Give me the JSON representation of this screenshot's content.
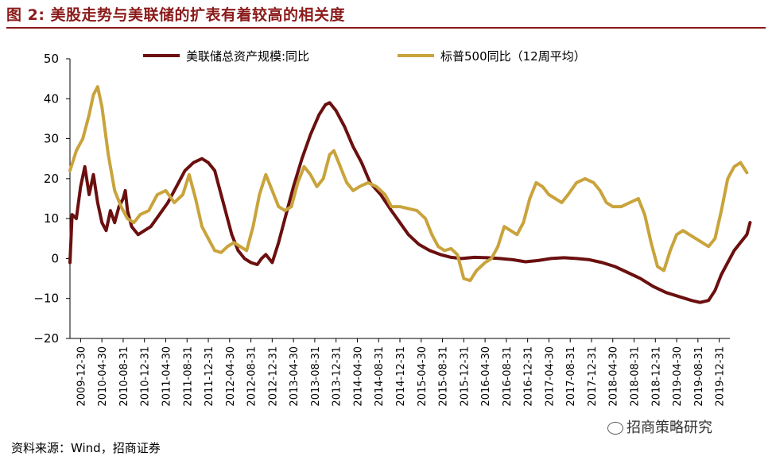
{
  "figure": {
    "title": "图 2:  美股走势与美联储的扩表有着较高的相关度",
    "source": "资料来源：Wind，招商证券",
    "watermark": "招商策略研究"
  },
  "chart_data": {
    "type": "line",
    "title": "",
    "xlabel": "",
    "ylabel": "",
    "ylim": [
      -20,
      50
    ],
    "yticks": [
      -20,
      -10,
      0,
      10,
      20,
      30,
      40,
      50
    ],
    "grid": false,
    "legend_position": "top",
    "x_tick_labels": [
      "2009-12-30",
      "2010-04-30",
      "2010-08-31",
      "2010-12-31",
      "2011-04-30",
      "2011-08-31",
      "2011-12-31",
      "2012-04-30",
      "2012-08-31",
      "2012-12-31",
      "2013-04-30",
      "2013-08-31",
      "2013-12-31",
      "2014-04-30",
      "2014-08-31",
      "2014-12-31",
      "2015-04-30",
      "2015-08-31",
      "2015-12-31",
      "2016-04-30",
      "2016-08-31",
      "2016-12-31",
      "2017-04-30",
      "2017-08-31",
      "2017-12-31",
      "2018-04-30",
      "2018-08-31",
      "2018-12-31",
      "2019-04-30",
      "2019-08-31",
      "2019-12-31"
    ],
    "series": [
      {
        "name": "美联储总资产规模:同比",
        "color": "#6b0f0f",
        "points": [
          [
            0,
            -1
          ],
          [
            0.1,
            11
          ],
          [
            0.3,
            10
          ],
          [
            0.5,
            18
          ],
          [
            0.7,
            23
          ],
          [
            0.9,
            16
          ],
          [
            1.1,
            21
          ],
          [
            1.3,
            14
          ],
          [
            1.5,
            9
          ],
          [
            1.7,
            7
          ],
          [
            1.9,
            12
          ],
          [
            2.1,
            9
          ],
          [
            2.3,
            13
          ],
          [
            2.5,
            15
          ],
          [
            2.6,
            17
          ],
          [
            2.7,
            12
          ],
          [
            2.9,
            8
          ],
          [
            3.2,
            6
          ],
          [
            3.5,
            7
          ],
          [
            3.8,
            8
          ],
          [
            4.2,
            11
          ],
          [
            4.6,
            14
          ],
          [
            5.0,
            18
          ],
          [
            5.4,
            22
          ],
          [
            5.8,
            24
          ],
          [
            6.2,
            25
          ],
          [
            6.5,
            24
          ],
          [
            6.8,
            22
          ],
          [
            7.0,
            18
          ],
          [
            7.3,
            12
          ],
          [
            7.6,
            6
          ],
          [
            7.9,
            2
          ],
          [
            8.2,
            0
          ],
          [
            8.5,
            -1
          ],
          [
            8.8,
            -1.5
          ],
          [
            9.0,
            0
          ],
          [
            9.2,
            1
          ],
          [
            9.5,
            -1
          ],
          [
            9.8,
            4
          ],
          [
            10.1,
            10
          ],
          [
            10.5,
            18
          ],
          [
            10.9,
            25
          ],
          [
            11.3,
            31
          ],
          [
            11.7,
            36
          ],
          [
            12.0,
            38.5
          ],
          [
            12.2,
            39
          ],
          [
            12.5,
            37
          ],
          [
            12.9,
            33
          ],
          [
            13.3,
            28
          ],
          [
            13.7,
            24
          ],
          [
            14.1,
            19
          ],
          [
            14.6,
            16
          ],
          [
            15.1,
            12
          ],
          [
            15.5,
            9
          ],
          [
            15.9,
            6
          ],
          [
            16.4,
            3.5
          ],
          [
            16.9,
            2
          ],
          [
            17.4,
            1
          ],
          [
            17.9,
            0.3
          ],
          [
            18.4,
            0
          ],
          [
            19.0,
            0.3
          ],
          [
            19.6,
            0.2
          ],
          [
            20.2,
            0
          ],
          [
            20.8,
            -0.3
          ],
          [
            21.4,
            -0.8
          ],
          [
            22.0,
            -0.5
          ],
          [
            22.6,
            0
          ],
          [
            23.2,
            0.2
          ],
          [
            23.8,
            0
          ],
          [
            24.4,
            -0.3
          ],
          [
            25.0,
            -1
          ],
          [
            25.6,
            -2
          ],
          [
            26.2,
            -3.5
          ],
          [
            26.8,
            -5
          ],
          [
            27.4,
            -7
          ],
          [
            28.0,
            -8.5
          ],
          [
            28.6,
            -9.5
          ],
          [
            29.2,
            -10.5
          ],
          [
            29.6,
            -11
          ],
          [
            30.0,
            -10.5
          ],
          [
            30.3,
            -8
          ],
          [
            30.6,
            -4
          ],
          [
            30.9,
            -1
          ],
          [
            31.2,
            2
          ],
          [
            31.5,
            4
          ],
          [
            31.8,
            6
          ],
          [
            31.95,
            9
          ]
        ]
      },
      {
        "name": "标普500同比（12周平均）",
        "color": "#c9a33c",
        "points": [
          [
            0,
            22
          ],
          [
            0.3,
            27
          ],
          [
            0.6,
            30
          ],
          [
            0.9,
            36
          ],
          [
            1.1,
            41
          ],
          [
            1.3,
            43
          ],
          [
            1.5,
            38
          ],
          [
            1.8,
            26
          ],
          [
            2.1,
            17
          ],
          [
            2.4,
            13
          ],
          [
            2.7,
            10
          ],
          [
            3.0,
            9
          ],
          [
            3.3,
            11
          ],
          [
            3.7,
            12
          ],
          [
            4.1,
            16
          ],
          [
            4.5,
            17
          ],
          [
            4.9,
            14
          ],
          [
            5.3,
            16
          ],
          [
            5.6,
            21
          ],
          [
            5.9,
            15
          ],
          [
            6.2,
            8
          ],
          [
            6.5,
            5
          ],
          [
            6.8,
            2
          ],
          [
            7.1,
            1.5
          ],
          [
            7.4,
            3
          ],
          [
            7.7,
            4
          ],
          [
            8.0,
            3
          ],
          [
            8.3,
            2
          ],
          [
            8.6,
            8
          ],
          [
            8.9,
            16
          ],
          [
            9.2,
            21
          ],
          [
            9.5,
            17
          ],
          [
            9.8,
            13
          ],
          [
            10.1,
            12
          ],
          [
            10.4,
            13
          ],
          [
            10.7,
            19
          ],
          [
            11.0,
            23
          ],
          [
            11.3,
            21
          ],
          [
            11.6,
            18
          ],
          [
            11.9,
            20
          ],
          [
            12.2,
            26
          ],
          [
            12.4,
            27
          ],
          [
            12.7,
            23
          ],
          [
            13.0,
            19
          ],
          [
            13.3,
            17
          ],
          [
            13.6,
            18
          ],
          [
            14.0,
            19
          ],
          [
            14.4,
            18
          ],
          [
            14.8,
            16
          ],
          [
            15.1,
            13
          ],
          [
            15.5,
            13
          ],
          [
            15.9,
            12.5
          ],
          [
            16.3,
            12
          ],
          [
            16.7,
            10
          ],
          [
            17.0,
            6
          ],
          [
            17.3,
            3
          ],
          [
            17.6,
            2
          ],
          [
            17.9,
            2.5
          ],
          [
            18.2,
            1
          ],
          [
            18.5,
            -5
          ],
          [
            18.8,
            -5.5
          ],
          [
            19.1,
            -3
          ],
          [
            19.5,
            -1
          ],
          [
            19.8,
            0
          ],
          [
            20.1,
            3
          ],
          [
            20.4,
            8
          ],
          [
            20.7,
            7
          ],
          [
            21.0,
            6
          ],
          [
            21.3,
            9
          ],
          [
            21.6,
            15
          ],
          [
            21.9,
            19
          ],
          [
            22.2,
            18
          ],
          [
            22.5,
            16
          ],
          [
            22.8,
            15
          ],
          [
            23.1,
            14
          ],
          [
            23.4,
            16
          ],
          [
            23.8,
            19
          ],
          [
            24.2,
            20
          ],
          [
            24.6,
            19
          ],
          [
            24.9,
            17
          ],
          [
            25.2,
            14
          ],
          [
            25.5,
            13
          ],
          [
            25.9,
            13
          ],
          [
            26.3,
            14
          ],
          [
            26.7,
            15
          ],
          [
            27.0,
            11
          ],
          [
            27.3,
            4
          ],
          [
            27.6,
            -2
          ],
          [
            27.9,
            -3
          ],
          [
            28.2,
            2
          ],
          [
            28.5,
            6
          ],
          [
            28.8,
            7
          ],
          [
            29.1,
            6
          ],
          [
            29.4,
            5
          ],
          [
            29.7,
            4
          ],
          [
            30.0,
            3
          ],
          [
            30.3,
            5
          ],
          [
            30.6,
            12
          ],
          [
            30.9,
            20
          ],
          [
            31.2,
            23
          ],
          [
            31.5,
            24
          ],
          [
            31.8,
            21.5
          ]
        ]
      }
    ]
  }
}
